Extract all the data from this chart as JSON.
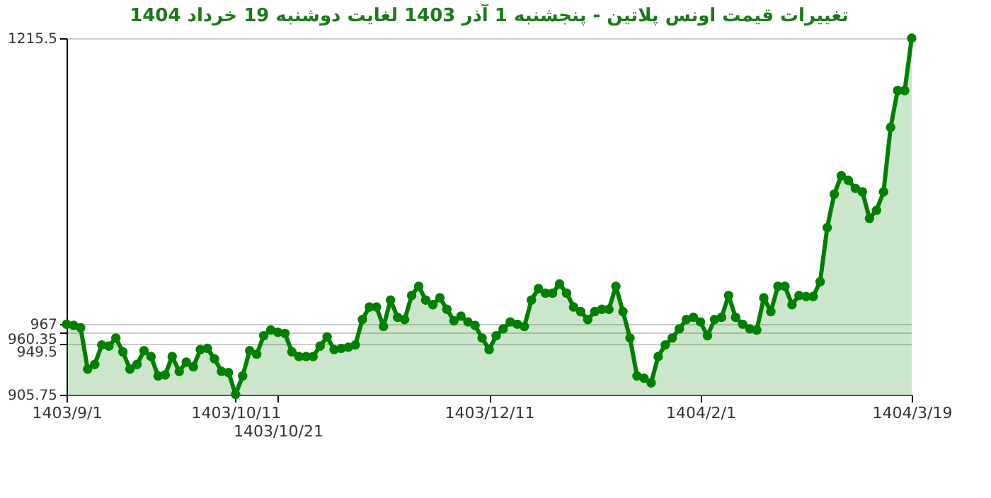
{
  "chart_data": {
    "type": "area",
    "title": "تغییرات قیمت اونس پلاتین - پنجشنبه  1 آذر 1403 لغایت  دوشنبه  19 خرداد 1404",
    "categories": [
      "1403/9/1",
      null,
      null,
      null,
      null,
      null,
      null,
      null,
      null,
      null,
      null,
      null,
      null,
      null,
      null,
      null,
      null,
      null,
      null,
      null,
      null,
      null,
      null,
      null,
      "1403/10/11",
      null,
      null,
      null,
      null,
      null,
      "1403/10/21",
      null,
      null,
      null,
      null,
      null,
      null,
      null,
      null,
      null,
      null,
      null,
      null,
      null,
      null,
      null,
      null,
      null,
      null,
      null,
      null,
      null,
      null,
      null,
      null,
      null,
      null,
      null,
      null,
      null,
      "1403/12/11",
      null,
      null,
      null,
      null,
      null,
      null,
      null,
      null,
      null,
      null,
      null,
      null,
      null,
      null,
      null,
      null,
      null,
      null,
      null,
      null,
      null,
      null,
      null,
      null,
      null,
      null,
      null,
      null,
      null,
      "1404/2/1",
      null,
      null,
      null,
      null,
      null,
      null,
      null,
      null,
      null,
      null,
      null,
      null,
      null,
      null,
      null,
      null,
      null,
      null,
      null,
      null,
      null,
      null,
      null,
      null,
      null,
      null,
      null,
      null,
      null,
      "1404/3/19"
    ],
    "series": [
      {
        "color": "#008000",
        "values": [
          967,
          966,
          964,
          928,
          932,
          949,
          948,
          955,
          943,
          928,
          932,
          944,
          939,
          922,
          923,
          939,
          926,
          934,
          930,
          945,
          946,
          937,
          926,
          925,
          906,
          922,
          944,
          941,
          957,
          962,
          960,
          959,
          943,
          939,
          939,
          939,
          948,
          956,
          945,
          946,
          947,
          949,
          971,
          982,
          982,
          965,
          988,
          973,
          971,
          992,
          1000,
          988,
          984,
          990,
          980,
          970,
          974,
          969,
          966,
          955,
          945,
          957,
          963,
          969,
          967,
          965,
          988,
          998,
          994,
          994,
          1002,
          994,
          982,
          978,
          971,
          978,
          980,
          980,
          1000,
          978,
          955,
          922,
          920,
          916,
          939,
          949,
          955,
          963,
          971,
          973,
          969,
          957,
          971,
          973,
          992,
          973,
          967,
          963,
          962,
          990,
          978,
          1000,
          1000,
          984,
          992,
          991,
          991,
          1004,
          1051,
          1080,
          1096,
          1092,
          1085,
          1082,
          1059,
          1066,
          1082,
          1138,
          1170,
          1170,
          1215.5
        ]
      }
    ],
    "ylim": [
      905.75,
      1215.5
    ],
    "yticks": [
      905.75,
      949.5,
      960.35,
      967,
      1215.5
    ],
    "grid": "y",
    "marker": "circle"
  }
}
